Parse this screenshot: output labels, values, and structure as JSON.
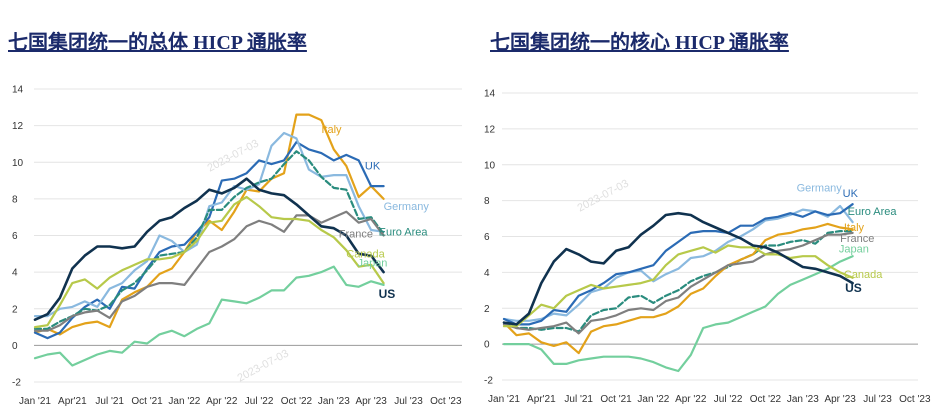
{
  "titles": {
    "left": "七国集团统一的总体 HICP 通胀率",
    "right": "七国集团统一的核心 HICP 通胀率"
  },
  "watermarks": {
    "date": "2023-07-03"
  },
  "chart_data": [
    {
      "type": "line",
      "title": "七国集团统一的总体 HICP 通胀率",
      "xlabel": "",
      "ylabel": "",
      "x_ticks": [
        "Jan '21",
        "Apr'21",
        "Jul '21",
        "Oct '21",
        "Jan '22",
        "Apr '22",
        "Jul '22",
        "Oct '22",
        "Jan '23",
        "Apr '23",
        "Jul '23",
        "Oct '23"
      ],
      "x_start": "2021-01",
      "ylim": [
        -2,
        14
      ],
      "y_ticks": [
        -2,
        0,
        2,
        4,
        6,
        8,
        10,
        12,
        14
      ],
      "grid": "horizontal",
      "legend": "inline labels at line ends",
      "series": [
        {
          "name": "Italy",
          "color": "#e3a21a",
          "bold": false,
          "label_month": 23,
          "label_value": 11.6,
          "values": [
            0.7,
            0.9,
            0.6,
            1.0,
            1.2,
            1.3,
            1.0,
            2.5,
            2.9,
            3.2,
            3.9,
            4.2,
            5.1,
            6.2,
            6.8,
            6.3,
            7.3,
            8.5,
            8.4,
            9.1,
            9.4,
            12.6,
            12.6,
            12.3,
            10.7,
            9.8,
            8.1,
            8.7,
            8.0
          ]
        },
        {
          "name": "UK",
          "color": "#2b6bb5",
          "bold": false,
          "label_month": 26.5,
          "label_value": 9.6,
          "values": [
            0.7,
            0.4,
            0.7,
            1.5,
            2.1,
            2.5,
            2.0,
            3.2,
            3.1,
            4.2,
            5.1,
            5.4,
            5.5,
            6.2,
            7.0,
            9.0,
            9.1,
            9.4,
            10.1,
            9.9,
            10.1,
            11.1,
            10.7,
            10.5,
            10.1,
            10.4,
            10.1,
            8.7,
            8.7
          ]
        },
        {
          "name": "Germany",
          "color": "#8ab9df",
          "bold": false,
          "label_month": 28,
          "label_value": 7.4,
          "values": [
            1.6,
            1.6,
            2.0,
            2.1,
            2.4,
            2.1,
            3.1,
            3.4,
            4.1,
            4.6,
            6.0,
            5.7,
            5.1,
            5.5,
            7.6,
            7.8,
            8.7,
            8.5,
            8.8,
            10.9,
            11.6,
            11.3,
            9.6,
            9.2,
            9.3,
            9.3,
            7.6,
            6.3,
            6.2
          ]
        },
        {
          "name": "Euro Area",
          "color": "#2a8c7e",
          "bold": false,
          "dashed": true,
          "label_month": 27.6,
          "label_value": 6.0,
          "values": [
            0.9,
            0.9,
            1.3,
            1.6,
            2.0,
            1.9,
            2.2,
            3.0,
            3.4,
            4.1,
            4.9,
            5.0,
            5.1,
            5.9,
            7.4,
            7.4,
            8.1,
            8.6,
            8.9,
            9.1,
            9.9,
            10.6,
            10.1,
            9.2,
            8.6,
            8.5,
            6.9,
            7.0,
            6.1
          ]
        },
        {
          "name": "France",
          "color": "#7f7f7f",
          "bold": false,
          "label_month": 24.4,
          "label_value": 5.9,
          "values": [
            0.8,
            0.8,
            1.1,
            1.6,
            1.8,
            1.9,
            1.5,
            2.4,
            2.7,
            3.2,
            3.4,
            3.4,
            3.3,
            4.2,
            5.1,
            5.4,
            5.8,
            6.5,
            6.8,
            6.6,
            6.2,
            7.1,
            7.1,
            6.7,
            7.0,
            7.3,
            6.7,
            6.9,
            6.0
          ]
        },
        {
          "name": "Canada",
          "color": "#b7c94a",
          "bold": false,
          "label_month": 25,
          "label_value": 4.8,
          "values": [
            1.0,
            1.1,
            2.2,
            3.4,
            3.6,
            3.1,
            3.7,
            4.1,
            4.4,
            4.7,
            4.7,
            4.8,
            5.1,
            5.7,
            6.7,
            6.8,
            7.7,
            8.1,
            7.6,
            7.0,
            6.9,
            6.9,
            6.8,
            6.3,
            5.9,
            5.2,
            4.3,
            4.4,
            3.4
          ]
        },
        {
          "name": "Japan",
          "color": "#73cf9d",
          "bold": false,
          "label_month": 25.9,
          "label_value": 4.3,
          "values": [
            -0.7,
            -0.5,
            -0.4,
            -1.1,
            -0.8,
            -0.5,
            -0.3,
            -0.4,
            0.2,
            0.1,
            0.6,
            0.8,
            0.5,
            0.9,
            1.2,
            2.5,
            2.4,
            2.3,
            2.6,
            3.0,
            3.0,
            3.7,
            3.8,
            4.0,
            4.3,
            3.3,
            3.2,
            3.5,
            3.3
          ]
        },
        {
          "name": "US",
          "color": "#10324f",
          "bold": true,
          "label_month": 27.6,
          "label_value": 2.6,
          "values": [
            1.4,
            1.7,
            2.6,
            4.2,
            4.9,
            5.4,
            5.4,
            5.3,
            5.4,
            6.2,
            6.8,
            7.0,
            7.5,
            7.9,
            8.5,
            8.3,
            8.6,
            9.1,
            8.5,
            8.3,
            8.2,
            7.7,
            7.1,
            6.5,
            6.4,
            6.0,
            5.0,
            4.9,
            4.0
          ]
        }
      ]
    },
    {
      "type": "line",
      "title": "七国集团统一的核心 HICP 通胀率",
      "xlabel": "",
      "ylabel": "",
      "x_ticks": [
        "Jan '21",
        "Apr'21",
        "Jul '21",
        "Oct '21",
        "Jan '22",
        "Apr '22",
        "Jul '22",
        "Oct '22",
        "Jan '23",
        "Apr '23",
        "Jul '23",
        "Oct '23"
      ],
      "x_start": "2021-01",
      "ylim": [
        -2,
        14
      ],
      "y_ticks": [
        -2,
        0,
        2,
        4,
        6,
        8,
        10,
        12,
        14
      ],
      "grid": "horizontal",
      "legend": "inline labels at line ends",
      "series": [
        {
          "name": "Germany",
          "color": "#8ab9df",
          "bold": false,
          "label_month": 23.5,
          "label_value": 8.5,
          "values": [
            1.4,
            1.3,
            1.3,
            1.4,
            1.7,
            1.6,
            2.2,
            2.9,
            3.1,
            3.7,
            4.0,
            4.1,
            3.5,
            3.9,
            4.2,
            4.8,
            4.9,
            5.2,
            5.7,
            6.0,
            6.4,
            6.9,
            7.0,
            7.2,
            7.5,
            7.4,
            7.1,
            7.7,
            6.8
          ]
        },
        {
          "name": "UK",
          "color": "#2b6bb5",
          "bold": false,
          "label_month": 27.2,
          "label_value": 8.2,
          "values": [
            1.4,
            1.1,
            1.1,
            1.3,
            1.9,
            1.8,
            2.7,
            3.0,
            3.4,
            3.9,
            4.0,
            4.2,
            4.4,
            5.2,
            5.7,
            6.2,
            6.3,
            6.3,
            6.2,
            6.6,
            6.6,
            7.0,
            7.1,
            7.3,
            7.1,
            7.4,
            7.2,
            7.3,
            7.8
          ]
        },
        {
          "name": "Euro Area",
          "color": "#2a8c7e",
          "bold": false,
          "dashed": true,
          "label_month": 27.6,
          "label_value": 7.2,
          "values": [
            1.2,
            0.9,
            0.9,
            0.8,
            0.9,
            0.9,
            0.7,
            1.6,
            1.9,
            2.0,
            2.6,
            2.7,
            2.3,
            2.7,
            3.0,
            3.5,
            3.8,
            4.0,
            4.3,
            4.7,
            5.0,
            5.5,
            5.5,
            5.7,
            5.8,
            5.6,
            6.2,
            6.3,
            6.3
          ]
        },
        {
          "name": "Italy",
          "color": "#e3a21a",
          "bold": false,
          "label_month": 27.3,
          "label_value": 6.3,
          "values": [
            1.2,
            0.5,
            0.6,
            0.1,
            -0.1,
            0.1,
            -0.5,
            0.7,
            1.0,
            1.1,
            1.3,
            1.5,
            1.5,
            1.7,
            2.1,
            2.8,
            3.1,
            3.8,
            4.4,
            4.7,
            5.0,
            5.8,
            6.1,
            6.2,
            6.4,
            6.5,
            6.7,
            6.5,
            6.4
          ]
        },
        {
          "name": "France",
          "color": "#7f7f7f",
          "bold": false,
          "label_month": 27,
          "label_value": 5.7,
          "values": [
            1.1,
            0.9,
            0.8,
            0.9,
            1.0,
            1.2,
            0.6,
            1.3,
            1.4,
            1.6,
            1.9,
            2.0,
            1.9,
            2.4,
            2.6,
            3.2,
            3.6,
            4.0,
            4.4,
            4.5,
            4.6,
            5.0,
            5.2,
            5.3,
            5.5,
            5.8,
            6.1,
            6.1,
            6.2
          ]
        },
        {
          "name": "Japan",
          "color": "#73cf9d",
          "bold": false,
          "label_month": 26.9,
          "label_value": 5.1,
          "values": [
            0.0,
            0.0,
            0.0,
            -0.3,
            -1.1,
            -1.1,
            -0.9,
            -0.8,
            -0.7,
            -0.7,
            -0.7,
            -0.8,
            -1.0,
            -1.3,
            -1.5,
            -0.6,
            0.9,
            1.1,
            1.2,
            1.5,
            1.8,
            2.1,
            2.8,
            3.3,
            3.6,
            3.9,
            4.2,
            4.6,
            4.9
          ]
        },
        {
          "name": "Canada",
          "color": "#b7c94a",
          "bold": false,
          "label_month": 27.3,
          "label_value": 3.7,
          "values": [
            1.0,
            1.0,
            1.6,
            2.2,
            2.0,
            2.7,
            3.0,
            3.3,
            3.1,
            3.2,
            3.3,
            3.4,
            3.6,
            4.4,
            5.0,
            5.2,
            5.4,
            5.1,
            5.5,
            5.4,
            5.4,
            5.0,
            5.0,
            4.8,
            4.9,
            4.9,
            4.4,
            4.0,
            3.7
          ]
        },
        {
          "name": "US",
          "color": "#10324f",
          "bold": true,
          "label_month": 27.4,
          "label_value": 2.9,
          "values": [
            1.2,
            1.1,
            1.7,
            3.4,
            4.6,
            5.3,
            5.0,
            4.6,
            4.5,
            5.2,
            5.4,
            6.1,
            6.6,
            7.2,
            7.3,
            7.2,
            6.8,
            6.5,
            6.2,
            5.9,
            5.5,
            5.4,
            5.1,
            4.7,
            4.3,
            4.2,
            4.0,
            3.8,
            3.4
          ]
        }
      ]
    }
  ]
}
